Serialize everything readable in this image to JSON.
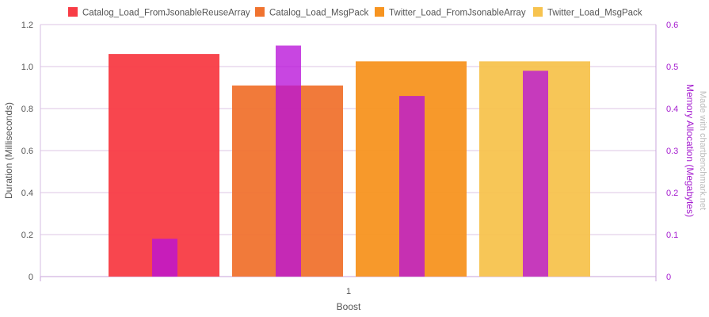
{
  "chart_data": {
    "type": "bar",
    "categories": [
      "1"
    ],
    "xlabel": "Boost",
    "ylabel": "Duration (Milliseconds)",
    "y2label": "Memory Allocation (Megabytes)",
    "ylim": [
      0,
      1.2
    ],
    "yticks": [
      "0",
      "0.2",
      "0.4",
      "0.6",
      "0.8",
      "1.0",
      "1.2"
    ],
    "y2lim": [
      0,
      0.6
    ],
    "y2ticks": [
      "0",
      "0.1",
      "0.2",
      "0.3",
      "0.4",
      "0.5",
      "0.6"
    ],
    "legend_position": "top",
    "grid": true,
    "series": [
      {
        "name": "Catalog_Load_FromJsonableReuseArray",
        "color": "#f83c45",
        "values": [
          1.06
        ]
      },
      {
        "name": "Catalog_Load_MsgPack",
        "color": "#f0732f",
        "values": [
          0.91
        ]
      },
      {
        "name": "Twitter_Load_FromJsonableArray",
        "color": "#f79420",
        "values": [
          1.025
        ]
      },
      {
        "name": "Twitter_Load_MsgPack",
        "color": "#f7c34e",
        "values": [
          1.025
        ]
      }
    ],
    "memory_series": {
      "color": "#b812d9",
      "values": [
        0.09,
        0.55,
        0.43,
        0.49
      ]
    },
    "watermark": "Made with chartbenchmark.net"
  }
}
